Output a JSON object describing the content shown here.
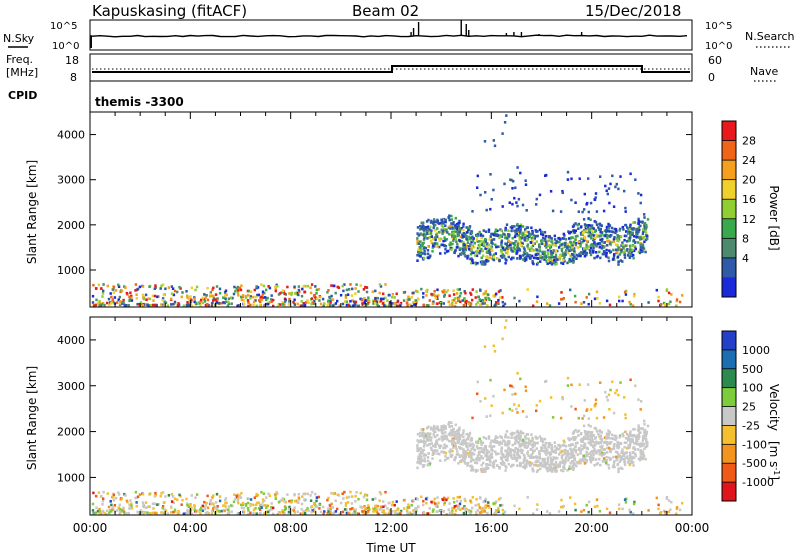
{
  "header": {
    "station": "Kapuskasing (fitACF)",
    "beam": "Beam 02",
    "date": "15/Dec/2018"
  },
  "strips": {
    "nsky_label": "N.Sky",
    "nsearch_label": "N.Search",
    "noise_ticks": [
      "10^5",
      "10^0"
    ],
    "freq_label_line1": "Freq.",
    "freq_label_line2": "[MHz]",
    "freq_ticks": [
      "18",
      "8"
    ],
    "nave_label": "Nave",
    "nave_ticks": [
      "60",
      "0"
    ],
    "cpid_label": "CPID",
    "cpid_text": "themis -3300"
  },
  "chart_data": [
    {
      "type": "heatmap",
      "title": "",
      "xlabel": "",
      "ylabel": "Slant Range [km]",
      "xlim": [
        0,
        24
      ],
      "ylim": [
        180,
        4500
      ],
      "y_ticks": [
        1000,
        2000,
        3000,
        4000
      ],
      "colorbar": {
        "label": "Power [dB]",
        "ticks": [
          "28",
          "24",
          "20",
          "16",
          "12",
          "8",
          "4"
        ],
        "colors": [
          "#e8191c",
          "#f06418",
          "#f4a01e",
          "#f0d02a",
          "#8fcf34",
          "#3aa84d",
          "#4d8a6e",
          "#2e5aa8",
          "#1a2ad8"
        ]
      },
      "regions": [
        {
          "t": [
            0,
            16.5
          ],
          "r": [
            180,
            700
          ],
          "level": "mixed noise scatter"
        },
        {
          "t": [
            13,
            22.2
          ],
          "r": [
            1200,
            2900
          ],
          "level": "4-20 dB band"
        }
      ]
    },
    {
      "type": "heatmap",
      "title": "",
      "xlabel": "Time UT",
      "ylabel": "Slant Range [km]",
      "xlim": [
        0,
        24
      ],
      "ylim": [
        180,
        4500
      ],
      "x_ticks": [
        "00:00",
        "04:00",
        "08:00",
        "12:00",
        "16:00",
        "20:00",
        "00:00"
      ],
      "y_ticks": [
        1000,
        2000,
        3000,
        4000
      ],
      "colorbar": {
        "label": "Velocity",
        "unit": "[m s",
        "unit_exp": "-1",
        "unit_close": "]",
        "ticks": [
          "1000",
          "500",
          "100",
          "25",
          "-25",
          "-100",
          "-500",
          "-1000"
        ],
        "colors": [
          "#2440c8",
          "#1c6eb2",
          "#2d8a4e",
          "#7ccc3c",
          "#c8c8c8",
          "#f4c030",
          "#f2941e",
          "#f05a18",
          "#e0141c"
        ]
      },
      "regions": [
        {
          "t": [
            0,
            16.5
          ],
          "r": [
            180,
            700
          ],
          "level": "low velocity scatter"
        },
        {
          "t": [
            13,
            22.2
          ],
          "r": [
            1200,
            2900
          ],
          "level": "ground scatter (grey)"
        }
      ]
    }
  ]
}
